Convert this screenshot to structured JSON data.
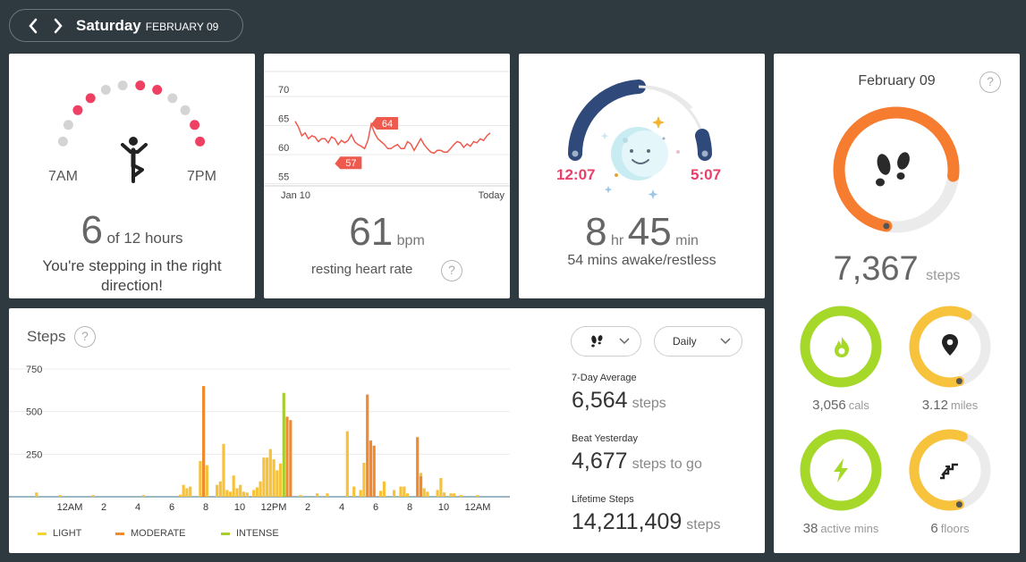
{
  "nav": {
    "day": "Saturday",
    "month": "FEBRUARY 09"
  },
  "hourly": {
    "left_label": "7AM",
    "right_label": "7PM",
    "count": "6",
    "of_text": "of 12 hours",
    "message": "You're stepping in the right direction!",
    "dots_active": [
      false,
      false,
      true,
      true,
      false,
      false,
      true,
      true,
      false,
      false,
      true,
      true
    ],
    "colors": {
      "active": "#ef3f63",
      "inactive": "#d4d4d4"
    }
  },
  "heart": {
    "ticks": [
      "70",
      "65",
      "60",
      "55"
    ],
    "x_start": "Jan 10",
    "x_end": "Today",
    "high_flag": "64",
    "low_flag": "57",
    "value": "61",
    "unit": "bpm",
    "label": "resting heart rate",
    "help": "?",
    "series": [
      64.5,
      63.5,
      62,
      62.5,
      61.5,
      62,
      61.8,
      61,
      61.5,
      61.5,
      60.8,
      61.8,
      61.5,
      60.5,
      61.2,
      60.8,
      61.2,
      62.2,
      61,
      60.5,
      60.2,
      59.8,
      61.2,
      64,
      62.5,
      61.5,
      61,
      60.5,
      59.8,
      59.8,
      60.2,
      60.5,
      59.8,
      59.8,
      61,
      60.6,
      59.5,
      60.5,
      61.5,
      60.5,
      59.8,
      59.2,
      59,
      59.5,
      59.5,
      59.2,
      59.2,
      59.8,
      60.5,
      61,
      60.8,
      60,
      60.6,
      60.2,
      61,
      60.8,
      61.5,
      61.2,
      62,
      62.5
    ],
    "ymin": 52,
    "ymax": 72,
    "color": "#ee5a4e"
  },
  "sleep": {
    "start": "12:07",
    "end": "5:07",
    "hours": "8",
    "hr": "hr",
    "minutes": "45",
    "min": "min",
    "sub": "54 mins awake/restless",
    "colors": {
      "arc": "#2f4a7a",
      "time": "#e8406a"
    }
  },
  "steps": {
    "title": "Steps",
    "help": "?",
    "yticks": [
      "750",
      "500",
      "250"
    ],
    "xticks": [
      "12AM",
      "2",
      "4",
      "6",
      "8",
      "10",
      "12PM",
      "2",
      "4",
      "6",
      "8",
      "10",
      "12AM"
    ],
    "legend": [
      "LIGHT",
      "MODERATE",
      "INTENSE"
    ],
    "colors": {
      "light": "#f6c23b",
      "moderate": "#f08a31",
      "intense": "#a6ce2d"
    },
    "dropdown_icon": "footsteps-icon",
    "dropdown_period": "Daily",
    "stats": [
      {
        "label": "7-Day Average",
        "value": "6,564",
        "unit": "steps"
      },
      {
        "label": "Beat Yesterday",
        "value": "4,677",
        "unit": "steps to go"
      },
      {
        "label": "Lifetime Steps",
        "value": "14,211,409",
        "unit": "steps"
      }
    ]
  },
  "chart_data": {
    "type": "bar",
    "stacked": false,
    "ylim": [
      0,
      750
    ],
    "yticks": [
      250,
      500,
      750
    ],
    "xticks": [
      "12AM",
      "2",
      "4",
      "6",
      "8",
      "10",
      "12PM",
      "2",
      "4",
      "6",
      "8",
      "10",
      "12AM"
    ],
    "interval_minutes": 15,
    "series": [
      {
        "name": "LIGHT",
        "points": [
          [
            3,
            25
          ],
          [
            10,
            10
          ],
          [
            20,
            10
          ],
          [
            35,
            10
          ],
          [
            46,
            12
          ],
          [
            47,
            70
          ],
          [
            48,
            50
          ],
          [
            49,
            60
          ],
          [
            52,
            210
          ],
          [
            54,
            185
          ],
          [
            57,
            70
          ],
          [
            58,
            90
          ],
          [
            59,
            310
          ],
          [
            60,
            40
          ],
          [
            61,
            30
          ],
          [
            62,
            125
          ],
          [
            63,
            50
          ],
          [
            64,
            70
          ],
          [
            65,
            30
          ],
          [
            66,
            25
          ],
          [
            68,
            40
          ],
          [
            69,
            55
          ],
          [
            70,
            90
          ],
          [
            71,
            230
          ],
          [
            72,
            230
          ],
          [
            73,
            280
          ],
          [
            74,
            220
          ],
          [
            75,
            155
          ],
          [
            76,
            195
          ],
          [
            82,
            10
          ],
          [
            87,
            20
          ],
          [
            90,
            20
          ],
          [
            96,
            385
          ],
          [
            98,
            60
          ],
          [
            100,
            40
          ],
          [
            101,
            200
          ],
          [
            104,
            50
          ],
          [
            106,
            35
          ],
          [
            107,
            90
          ],
          [
            110,
            40
          ],
          [
            112,
            60
          ],
          [
            113,
            60
          ],
          [
            114,
            20
          ],
          [
            118,
            140
          ],
          [
            119,
            50
          ],
          [
            120,
            30
          ],
          [
            123,
            40
          ],
          [
            124,
            110
          ],
          [
            125,
            25
          ],
          [
            127,
            20
          ],
          [
            128,
            20
          ],
          [
            130,
            10
          ],
          [
            135,
            10
          ]
        ]
      },
      {
        "name": "MODERATE",
        "points": [
          [
            53,
            650
          ],
          [
            78,
            470
          ],
          [
            79,
            450
          ],
          [
            102,
            600
          ],
          [
            103,
            330
          ],
          [
            104,
            300
          ],
          [
            117,
            350
          ],
          [
            118,
            120
          ]
        ]
      },
      {
        "name": "INTENSE",
        "points": [
          [
            77,
            610
          ]
        ]
      }
    ]
  },
  "goals": {
    "date": "February 09",
    "help": "?",
    "steps_value": "7,367",
    "steps_unit": "steps",
    "steps_progress": 0.74,
    "rings": [
      {
        "name": "calories",
        "value": "3,056",
        "unit": "cals",
        "progress": 1.0,
        "color": "#a6d82a",
        "icon": "flame-icon"
      },
      {
        "name": "distance",
        "value": "3.12",
        "unit": "miles",
        "progress": 0.62,
        "color": "#f8c33c",
        "icon": "location-pin-icon"
      },
      {
        "name": "active",
        "value": "38",
        "unit": "active mins",
        "progress": 1.0,
        "color": "#a6d82a",
        "icon": "lightning-icon"
      },
      {
        "name": "floors",
        "value": "6",
        "unit": "floors",
        "progress": 0.6,
        "color": "#f8c33c",
        "icon": "stairs-icon"
      }
    ],
    "colors": {
      "steps_ring": "#f67c2f",
      "track": "#ebebeb"
    }
  }
}
